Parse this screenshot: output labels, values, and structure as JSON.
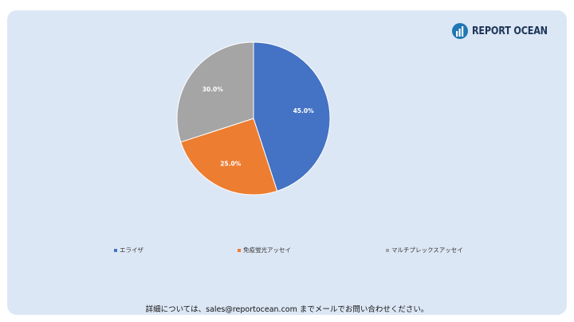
{
  "logo": {
    "text": "REPORT OCEAN"
  },
  "chart_data": {
    "type": "pie",
    "title": "",
    "categories": [
      "エライザ",
      "免疫蛍光アッセイ",
      "マルチプレックスアッセイ"
    ],
    "values": [
      45.0,
      25.0,
      30.0
    ],
    "labels": [
      "45.0%",
      "25.0%",
      "30.0%"
    ],
    "colors": [
      "#4472c4",
      "#ed7d31",
      "#a5a5a5"
    ],
    "legend_position": "bottom"
  },
  "footer": {
    "text": "詳細については、sales@reportocean.com までメールでお問い合わせください。"
  }
}
